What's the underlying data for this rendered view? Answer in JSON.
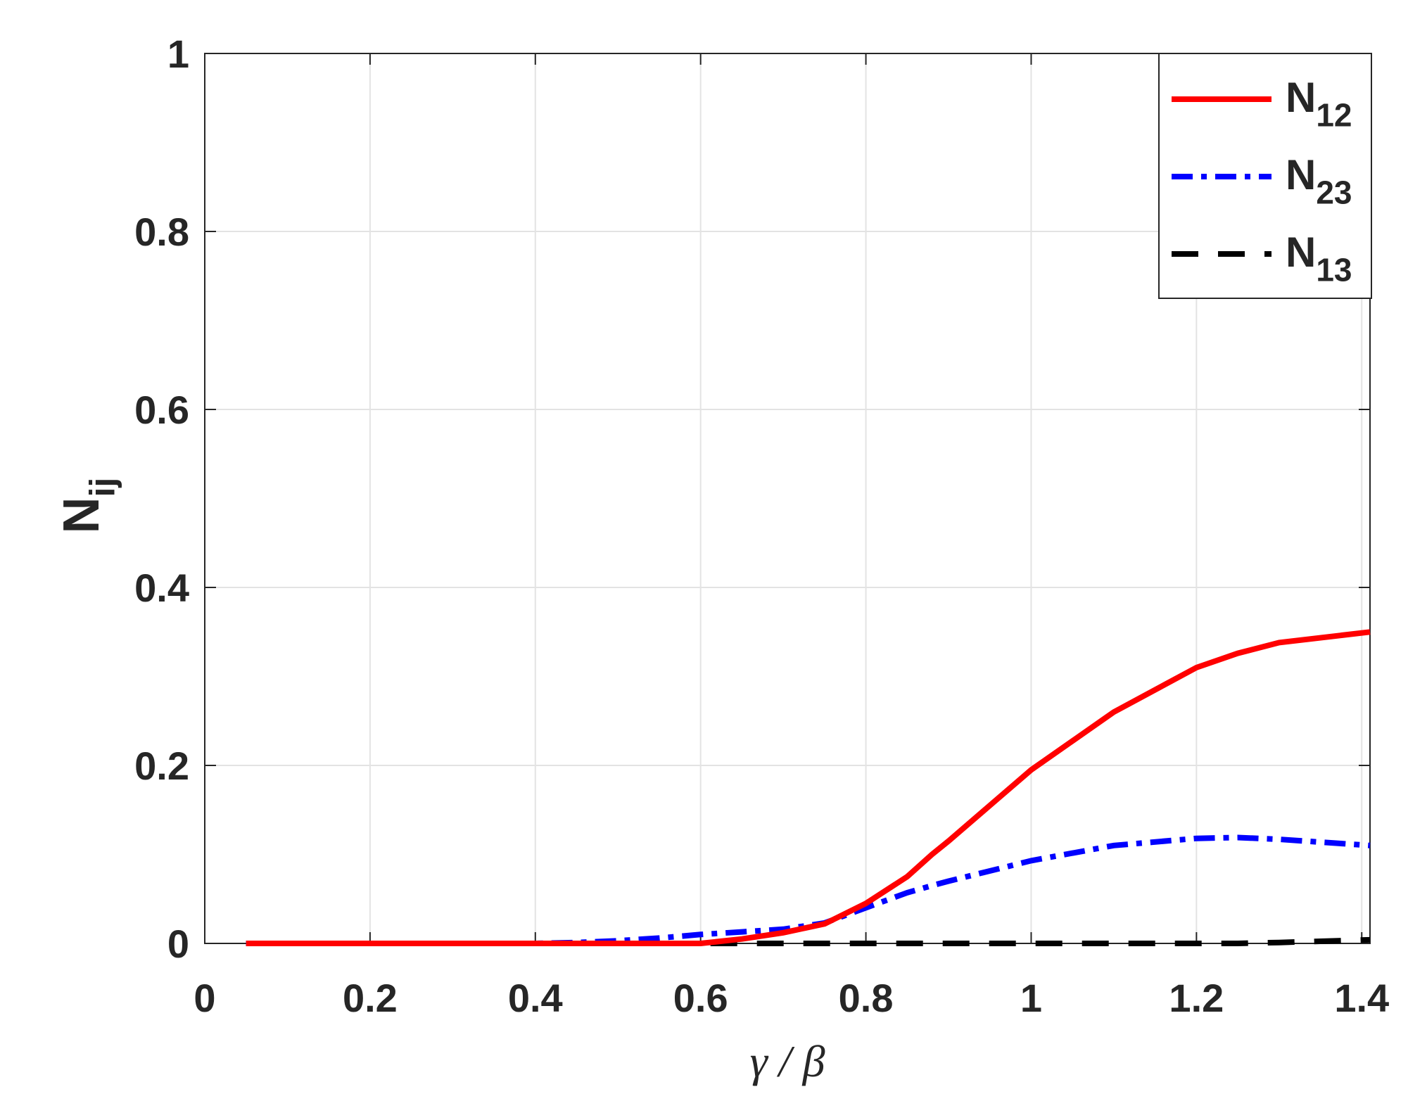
{
  "chart_data": {
    "type": "line",
    "x_label": "γ / β",
    "y_label": "Nij",
    "x": [
      0.05,
      0.1,
      0.2,
      0.3,
      0.4,
      0.45,
      0.5,
      0.55,
      0.6,
      0.65,
      0.7,
      0.75,
      0.8,
      0.85,
      0.88,
      0.9,
      1.0,
      1.1,
      1.2,
      1.25,
      1.3,
      1.41
    ],
    "series": [
      {
        "name": "N12",
        "color": "#ff0000",
        "dash": "solid",
        "values": [
          0,
          0,
          0,
          0,
          0,
          0,
          0,
          0,
          0,
          0.005,
          0.012,
          0.022,
          0.045,
          0.075,
          0.1,
          0.115,
          0.195,
          0.26,
          0.31,
          0.326,
          0.338,
          0.35
        ]
      },
      {
        "name": "N23",
        "color": "#0000ff",
        "dash": "dashdot",
        "values": [
          0,
          0,
          0,
          0,
          0,
          0.001,
          0.003,
          0.006,
          0.01,
          0.013,
          0.016,
          0.023,
          0.04,
          0.057,
          0.065,
          0.07,
          0.093,
          0.11,
          0.118,
          0.119,
          0.117,
          0.11
        ]
      },
      {
        "name": "N13",
        "color": "#000000",
        "dash": "dashed",
        "values": [
          0,
          0,
          0,
          0,
          0,
          0,
          0,
          0,
          0,
          0,
          0,
          0,
          0,
          0,
          0,
          0,
          0,
          0,
          0,
          0,
          0.001,
          0.004
        ]
      }
    ],
    "xlim": [
      0,
      1.41
    ],
    "ylim": [
      0,
      1
    ],
    "xticks": [
      0,
      0.2,
      0.4,
      0.6,
      0.8,
      1,
      1.2,
      1.4
    ],
    "yticks": [
      0,
      0.2,
      0.4,
      0.6,
      0.8,
      1
    ],
    "grid": true,
    "legend": "top-right"
  }
}
